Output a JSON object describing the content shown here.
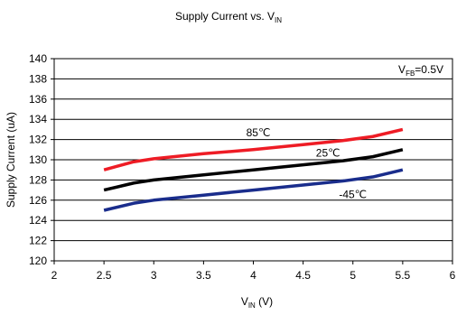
{
  "chart_data": {
    "type": "line",
    "title": "Supply Current vs. V",
    "title_sub": "IN",
    "xlabel": "V",
    "xlabel_sub": "IN",
    "xlabel_unit": " (V)",
    "ylabel": "Supply Current (uA)",
    "xlim": [
      2,
      6
    ],
    "ylim": [
      120,
      140
    ],
    "xticks": [
      2,
      2.5,
      3,
      3.5,
      4,
      4.5,
      5,
      5.5,
      6
    ],
    "xtick_labels": [
      "2",
      "2.5",
      "3",
      "3.5",
      "4",
      "4.5",
      "5",
      "5.5",
      "6"
    ],
    "yticks": [
      120,
      122,
      124,
      126,
      128,
      130,
      132,
      134,
      136,
      138,
      140
    ],
    "ytick_labels": [
      "120",
      "122",
      "124",
      "126",
      "128",
      "130",
      "132",
      "134",
      "136",
      "138",
      "140"
    ],
    "grid": "horizontal",
    "annotation": {
      "prefix": "V",
      "sub": "FB",
      "suffix": "=0.5V"
    },
    "series": [
      {
        "name": "85℃",
        "color": "#ee1c25",
        "x": [
          2.5,
          2.8,
          3.0,
          3.5,
          4.0,
          4.5,
          4.9,
          5.2,
          5.5
        ],
        "y": [
          129.0,
          129.8,
          130.1,
          130.6,
          131.0,
          131.5,
          131.9,
          132.3,
          133.0
        ]
      },
      {
        "name": "25℃",
        "color": "#000000",
        "x": [
          2.5,
          2.8,
          3.0,
          3.5,
          4.0,
          4.5,
          4.9,
          5.2,
          5.5
        ],
        "y": [
          127.0,
          127.7,
          128.0,
          128.5,
          129.0,
          129.5,
          129.9,
          130.3,
          131.0
        ]
      },
      {
        "name": "-45℃",
        "color": "#1a2d8c",
        "x": [
          2.5,
          2.8,
          3.0,
          3.5,
          4.0,
          4.5,
          4.9,
          5.2,
          5.5
        ],
        "y": [
          125.0,
          125.7,
          126.0,
          126.5,
          127.0,
          127.5,
          127.9,
          128.3,
          129.0
        ]
      }
    ]
  }
}
